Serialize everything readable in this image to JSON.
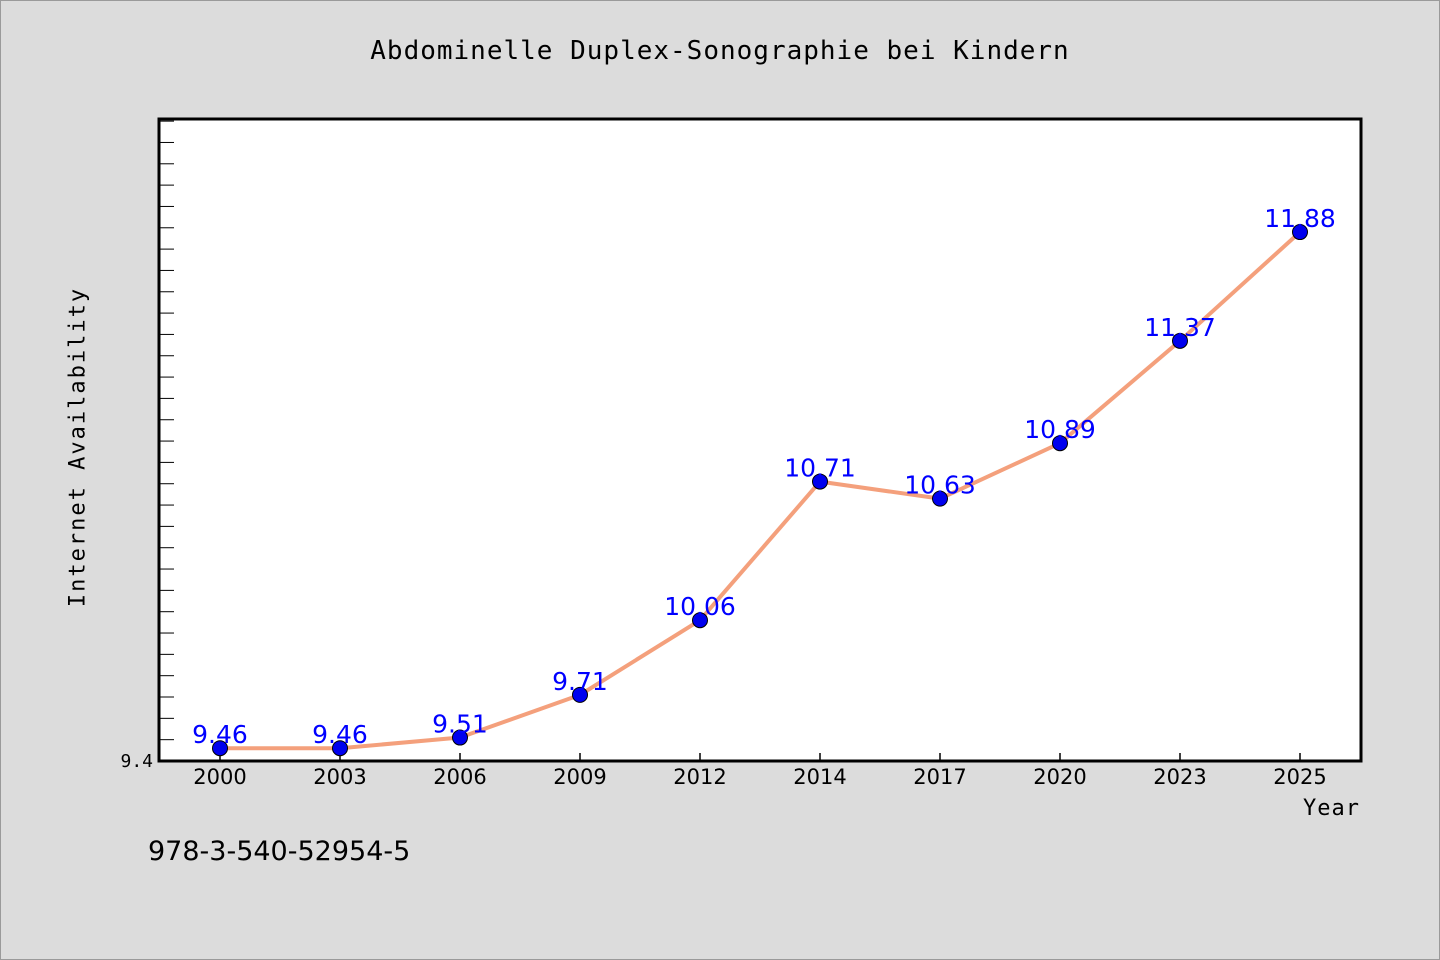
{
  "title": "Abdominelle Duplex-Sonographie bei Kindern",
  "footer_code": "978-3-540-52954-5",
  "colors": {
    "background": "#dcdcdc",
    "plot_background": "#ffffff",
    "line": "#f4a07c",
    "marker": "#0000ee",
    "data_label": "#0000ff"
  },
  "chart_data": {
    "type": "line",
    "title": "Abdominelle Duplex-Sonographie bei Kindern",
    "xlabel": "Year",
    "ylabel": "Internet Availability",
    "categories": [
      "2000",
      "2003",
      "2006",
      "2009",
      "2012",
      "2014",
      "2017",
      "2020",
      "2023",
      "2025"
    ],
    "series": [
      {
        "values": [
          9.46,
          9.46,
          9.51,
          9.71,
          10.06,
          10.71,
          10.63,
          10.89,
          11.37,
          11.88
        ]
      }
    ],
    "data_labels": [
      "9.46",
      "9.46",
      "9.51",
      "9.71",
      "10.06",
      "10.71",
      "10.63",
      "10.89",
      "11.37",
      "11.88"
    ],
    "ylim": [
      9.4,
      12.41
    ],
    "y_tick_labels": [
      "9.4"
    ],
    "grid": false,
    "legend": "none"
  }
}
